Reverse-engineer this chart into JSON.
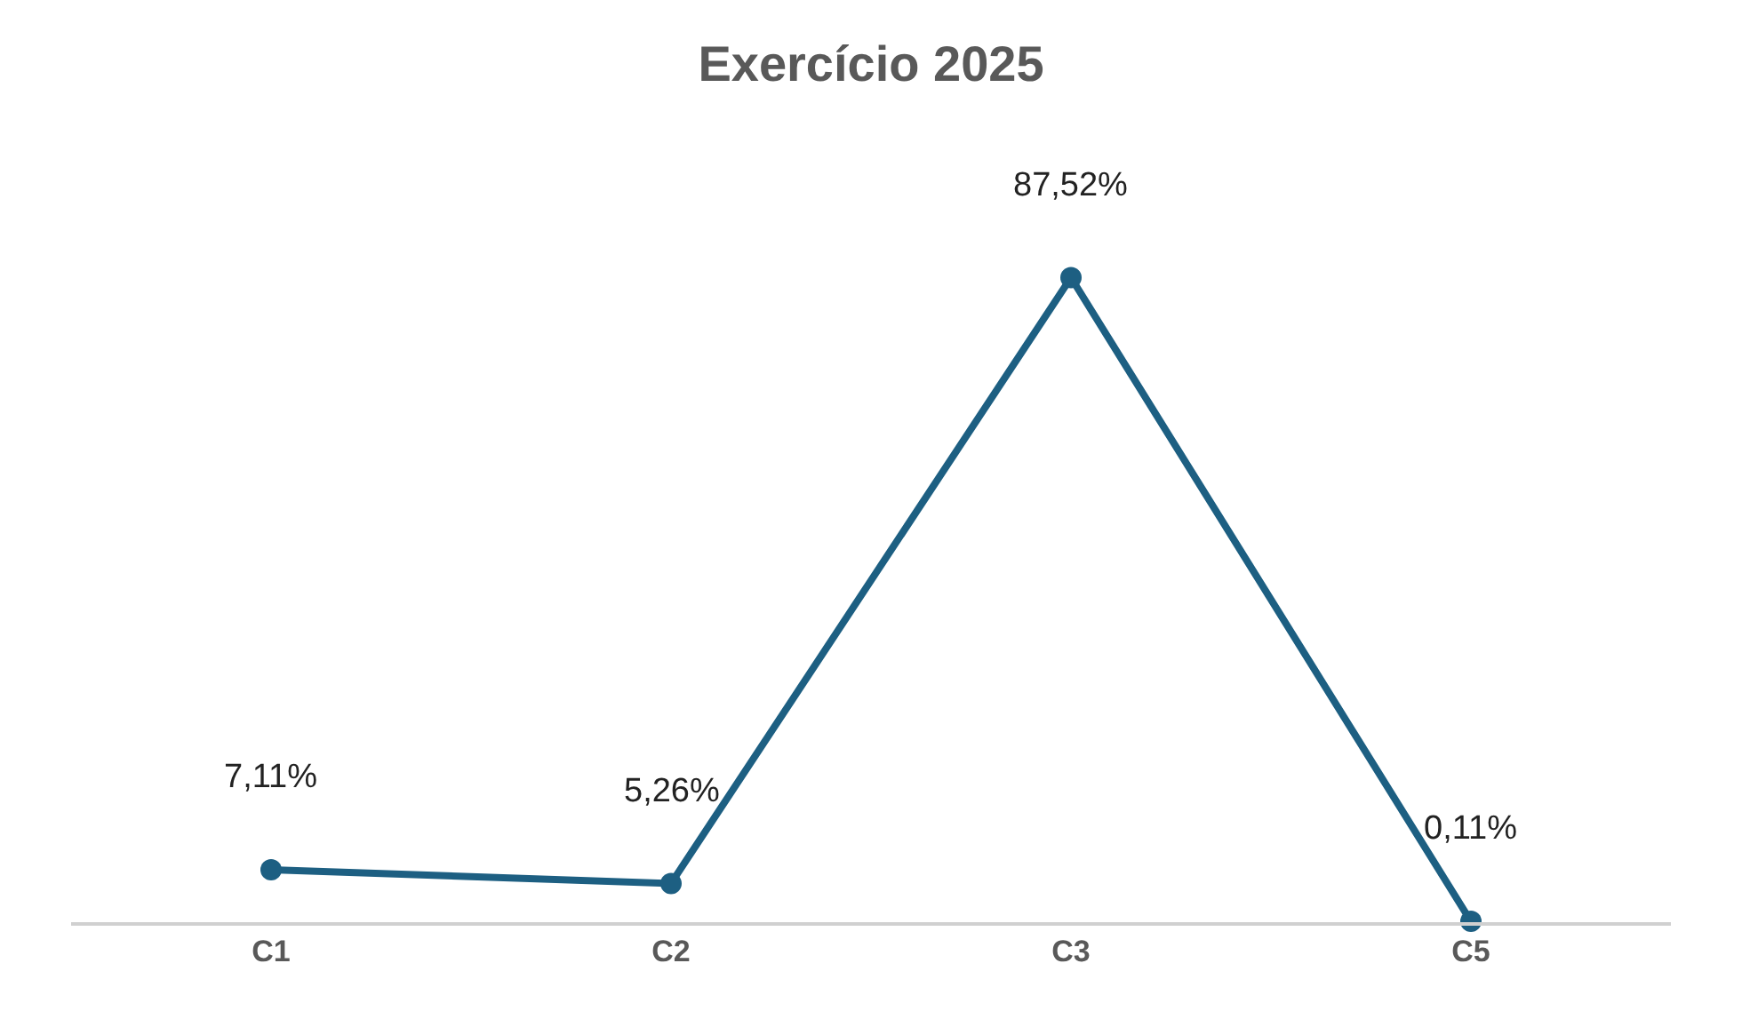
{
  "chart_data": {
    "type": "line",
    "title": "Exercício 2025",
    "categories": [
      "C1",
      "C2",
      "C3",
      "C5"
    ],
    "series": [
      {
        "color": "#1d5f82",
        "values": [
          7.11,
          5.26,
          87.52,
          0.11
        ],
        "value_labels": [
          "7,11%",
          "5,26%",
          "87,52%",
          "0,11%"
        ]
      }
    ],
    "marker": "circle",
    "line_style": "solid"
  }
}
